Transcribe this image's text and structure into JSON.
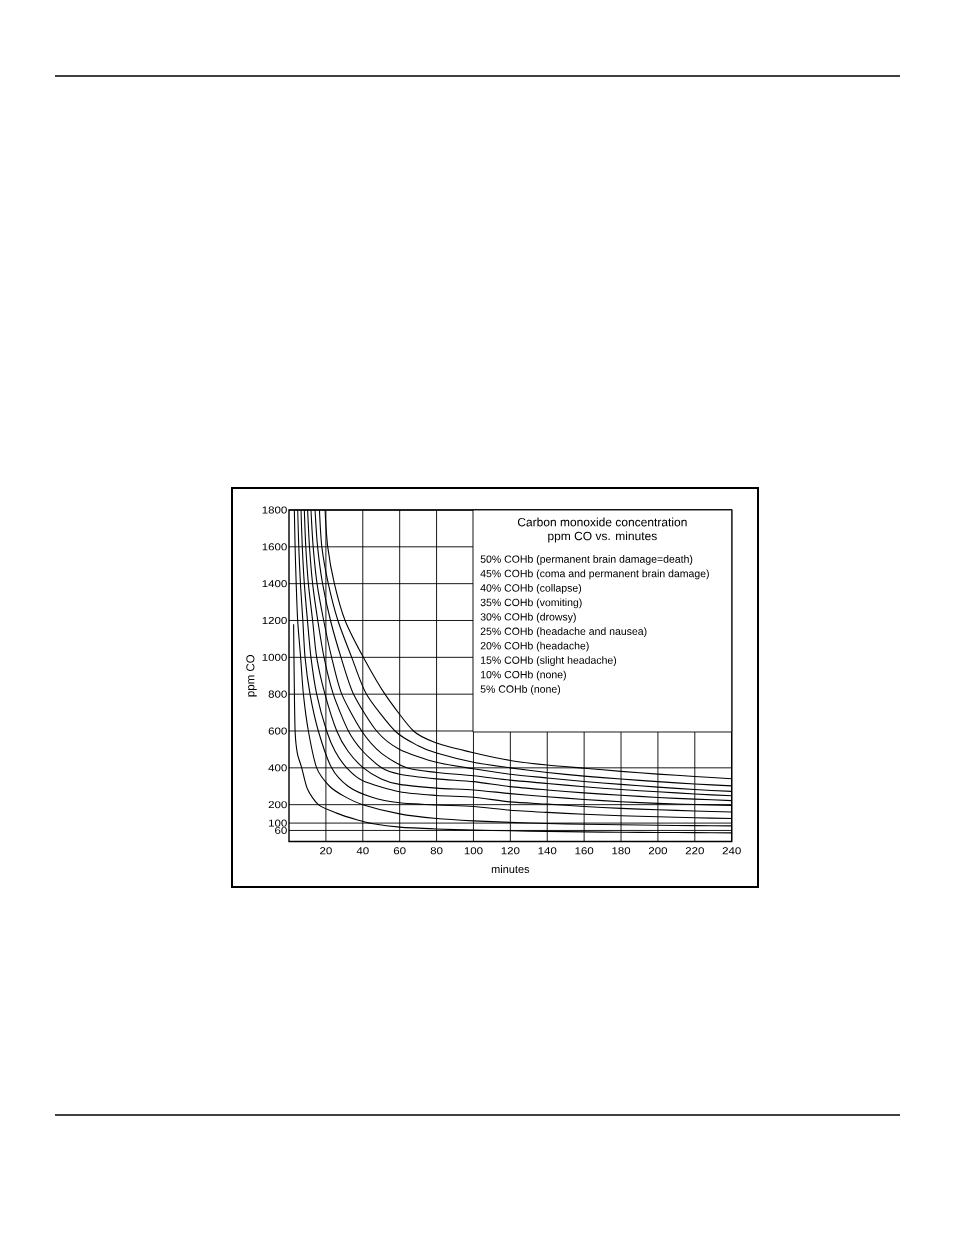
{
  "chart_data": {
    "type": "line",
    "title": "Carbon monoxide concentration",
    "subtitle": "ppm CO vs. minutes",
    "xlabel": "minutes",
    "ylabel": "ppm CO",
    "xlim": [
      0,
      240
    ],
    "ylim": [
      0,
      1800
    ],
    "xticks": [
      20,
      40,
      60,
      80,
      100,
      120,
      140,
      160,
      180,
      200,
      220,
      240
    ],
    "yticks": [
      60,
      100,
      200,
      400,
      600,
      800,
      1000,
      1200,
      1400,
      1600,
      1800
    ],
    "grid": true,
    "annotations": [
      "50% COHb (permanent brain damage=death)",
      "45% COHb (coma and permanent brain damage)",
      "40% COHb (collapse)",
      "35% COHb (vomiting)",
      "30% COHb (drowsy)",
      "25% COHb (headache and nausea)",
      "20% COHb (headache)",
      "15% COHb (slight headache)",
      "10% COHb (none)",
      "5% COHb (none)"
    ],
    "series": [
      {
        "color": "#000000",
        "x": [
          19.5,
          21,
          24.6,
          30.4,
          40.3,
          52,
          67.5,
          80,
          100,
          120,
          140,
          160,
          180,
          200,
          220,
          240
        ],
        "values": [
          1800,
          1600,
          1400,
          1200,
          1000,
          800,
          600,
          535,
          482,
          440,
          415,
          398,
          381,
          366,
          353,
          341
        ]
      },
      {
        "color": "#000000",
        "x": [
          16.5,
          17.8,
          21.3,
          26.5,
          34,
          42,
          57.5,
          70,
          80,
          100,
          120,
          140,
          160,
          180,
          200,
          220,
          240
        ],
        "values": [
          1800,
          1600,
          1400,
          1200,
          1000,
          800,
          600,
          520,
          480,
          430,
          400,
          375,
          355,
          339,
          325,
          312,
          302
        ]
      },
      {
        "color": "#000000",
        "x": [
          14.1,
          15.5,
          18.2,
          22.5,
          28.2,
          35,
          47.5,
          60,
          80,
          100,
          120,
          140,
          160,
          180,
          200,
          220,
          240
        ],
        "values": [
          1800,
          1600,
          1400,
          1200,
          1000,
          800,
          600,
          500,
          430,
          395,
          365,
          345,
          326,
          310,
          295,
          282,
          272
        ]
      },
      {
        "color": "#000000",
        "x": [
          11.9,
          13.1,
          15.2,
          18.8,
          23.1,
          28.6,
          39.4,
          50,
          63.8,
          80,
          100,
          120,
          140,
          160,
          180,
          200,
          220,
          240
        ],
        "values": [
          1800,
          1600,
          1400,
          1200,
          1000,
          800,
          600,
          480,
          400,
          375,
          357,
          333,
          315,
          297,
          282,
          270,
          258,
          248
        ]
      },
      {
        "color": "#000000",
        "x": [
          10.1,
          11.1,
          12.8,
          15.6,
          19,
          24,
          32.2,
          40,
          50.2,
          60,
          80,
          100,
          120,
          140,
          160,
          180,
          200,
          220,
          240
        ],
        "values": [
          1800,
          1600,
          1400,
          1200,
          1000,
          800,
          600,
          490,
          400,
          365,
          340,
          325,
          298,
          280,
          264,
          251,
          239,
          230,
          222
        ]
      },
      {
        "color": "#000000",
        "x": [
          8.3,
          9.1,
          10.5,
          12.8,
          15,
          19.5,
          25.9,
          32,
          40.3,
          50,
          60,
          80,
          100,
          120,
          140,
          160,
          180,
          200,
          220,
          240
        ],
        "values": [
          1800,
          1600,
          1400,
          1200,
          1000,
          800,
          600,
          490,
          400,
          340,
          310,
          290,
          280,
          260,
          243,
          228,
          216,
          207,
          201,
          196
        ]
      },
      {
        "color": "#000000",
        "x": [
          6.5,
          7.2,
          8.3,
          10,
          11.9,
          15,
          20.4,
          25,
          31.3,
          40,
          60,
          80,
          100,
          120,
          140,
          160,
          180,
          200,
          220,
          240
        ],
        "values": [
          1800,
          1600,
          1400,
          1200,
          1000,
          800,
          600,
          490,
          400,
          330,
          270,
          250,
          240,
          215,
          203,
          190,
          180,
          172,
          166,
          160
        ]
      },
      {
        "color": "#000000",
        "x": [
          4.7,
          5.3,
          6.2,
          7.5,
          8.7,
          11.4,
          15.9,
          23.1,
          32,
          45,
          60,
          80,
          100,
          120,
          140,
          160,
          180,
          200,
          220,
          240
        ],
        "values": [
          1800,
          1600,
          1400,
          1200,
          1000,
          800,
          600,
          400,
          300,
          240,
          210,
          198,
          190,
          170,
          158,
          148,
          140,
          134,
          129,
          125
        ]
      },
      {
        "color": "#000000",
        "x": [
          2.9,
          3.3,
          3.9,
          4.7,
          6.3,
          7.8,
          10.5,
          15,
          22,
          30,
          40,
          60,
          80,
          100,
          120,
          140,
          160,
          180,
          200,
          220,
          240
        ],
        "values": [
          1800,
          1600,
          1400,
          1200,
          1000,
          800,
          600,
          400,
          300,
          245,
          200,
          150,
          125,
          112,
          104,
          98,
          94,
          91,
          88,
          86,
          85
        ]
      },
      {
        "color": "#000000",
        "x": [
          2.5,
          2.8,
          3.3,
          4.5,
          6.9,
          10,
          15.9,
          25.8,
          36.7,
          45.7,
          60,
          80,
          100,
          120,
          140,
          160,
          180,
          200,
          220,
          240
        ],
        "values": [
          1180,
          900,
          600,
          480,
          400,
          285,
          200,
          154,
          118,
          96,
          78,
          68,
          62,
          58,
          55,
          52,
          50,
          49,
          48,
          47
        ]
      }
    ]
  }
}
